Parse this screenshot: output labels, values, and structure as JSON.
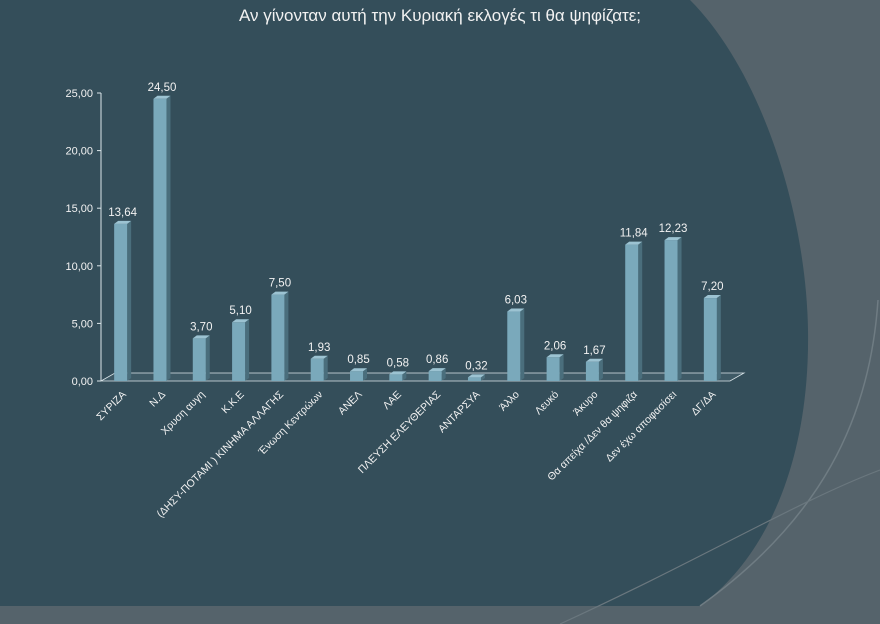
{
  "colors": {
    "background": "#55636b",
    "panel": "#344e5a",
    "bar_front": "#7aa9bb",
    "bar_side": "#4a6e7c",
    "bar_top": "#9cc3d2",
    "text": "#f2f2f2",
    "axis": "#dbe6ea"
  },
  "chart_data": {
    "type": "bar",
    "title": "Αν γίνονταν αυτή την Κυριακή εκλογές τι θα ψηφίζατε;",
    "xlabel": "",
    "ylabel": "",
    "ylim": [
      0,
      25
    ],
    "yticks": [
      "0,00",
      "5,00",
      "10,00",
      "15,00",
      "20,00",
      "25,00"
    ],
    "grid": false,
    "categories": [
      "ΣΥΡΙΖΑ",
      "Ν.Δ",
      "Χρυση αυγη",
      "Κ.Κ.Ε",
      "(ΔΗΣΥ-ΠΟΤΑΜΙ ) ΚΙΝΗΜΑ ΑΛΛΑΓΗΣ",
      "Ένωση Κεντρώων",
      "ΑΝΕΛ",
      "ΛΑΕ",
      "ΠΛΕΥΣΗ ΕΛΕΥΘΕΡΙΑΣ",
      "ΑΝΤΑΡΣΥΑ",
      "Άλλο",
      "Λευκό",
      "Άκυρο",
      "Θα απείχα /Δεν θα ψηφιζα",
      "Δεν έχω αποφασίσει",
      "ΔΓ/ΔΑ"
    ],
    "values": [
      13.64,
      24.5,
      3.7,
      5.1,
      7.5,
      1.93,
      0.85,
      0.58,
      0.86,
      0.32,
      6.03,
      2.06,
      1.67,
      11.84,
      12.23,
      7.2
    ],
    "value_labels": [
      "13,64",
      "24,50",
      "3,70",
      "5,10",
      "7,50",
      "1,93",
      "0,85",
      "0,58",
      "0,86",
      "0,32",
      "6,03",
      "2,06",
      "1,67",
      "11,84",
      "12,23",
      "7,20"
    ]
  }
}
